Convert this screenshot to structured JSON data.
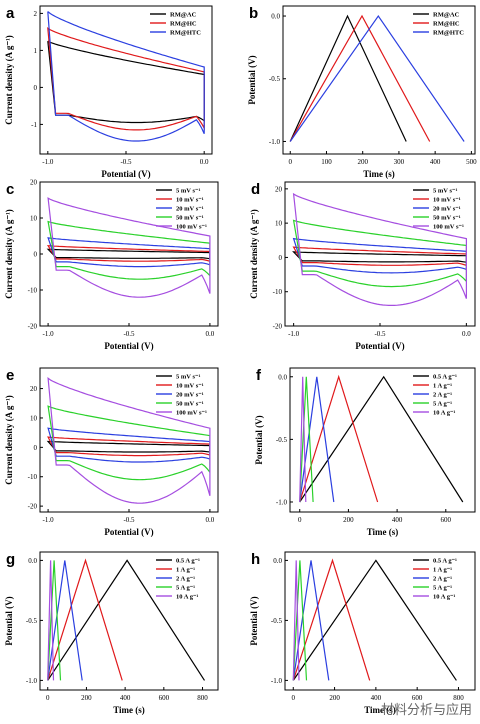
{
  "watermark": "材料分析与应用",
  "chart_data": [
    {
      "panel": "a",
      "type": "line",
      "xlabel": "Potential (V)",
      "ylabel": "Current density (A g⁻¹)",
      "xlim": [
        -1.05,
        0.05
      ],
      "ylim": [
        -1.8,
        2.2
      ],
      "xticks": [
        -1.0,
        -0.5,
        0.0
      ],
      "yticks": [
        -1,
        0,
        1,
        2
      ],
      "legend": "top-right",
      "series": [
        {
          "name": "RM@AC",
          "color": "#000000",
          "curve": "cv",
          "up": [
            1.25,
            0.35
          ],
          "dn": [
            -0.75,
            -0.95
          ],
          "tail": -0.9
        },
        {
          "name": "RM@HC",
          "color": "#e0191b",
          "curve": "cv",
          "up": [
            1.6,
            0.42
          ],
          "dn": [
            -0.7,
            -1.15
          ],
          "tail": -1.1
        },
        {
          "name": "RM@HTC",
          "color": "#2b3fe0",
          "curve": "cv",
          "up": [
            2.05,
            0.55
          ],
          "dn": [
            -0.75,
            -1.45
          ],
          "tail": -1.25
        }
      ]
    },
    {
      "panel": "b",
      "type": "line",
      "xlabel": "Time (s)",
      "ylabel": "Potential (V)",
      "xlim": [
        -20,
        510
      ],
      "ylim": [
        -1.1,
        0.08
      ],
      "xticks": [
        0,
        100,
        200,
        300,
        400,
        500
      ],
      "yticks": [
        -1.0,
        -0.5,
        0.0
      ],
      "legend": "top-right",
      "series": [
        {
          "name": "RM@AC",
          "color": "#000000",
          "curve": "gcd",
          "peak": 158,
          "end": 320
        },
        {
          "name": "RM@HC",
          "color": "#e0191b",
          "curve": "gcd",
          "peak": 198,
          "end": 385
        },
        {
          "name": "RM@HTC",
          "color": "#2b3fe0",
          "curve": "gcd",
          "peak": 243,
          "end": 480
        }
      ]
    },
    {
      "panel": "c",
      "type": "line",
      "xlabel": "Potential (V)",
      "ylabel": "Current density (A g⁻¹)",
      "xlim": [
        -1.05,
        0.05
      ],
      "ylim": [
        -20,
        20
      ],
      "xticks": [
        -1.0,
        -0.5,
        0.0
      ],
      "yticks": [
        -20,
        -10,
        0,
        10,
        20
      ],
      "legend": "top-right",
      "series": [
        {
          "name": "5 mV s⁻¹",
          "color": "#000000",
          "curve": "cv",
          "up": [
            1.3,
            0.4
          ],
          "dn": [
            -1.0,
            -1.2
          ],
          "tail": -1.3
        },
        {
          "name": "10 mV s⁻¹",
          "color": "#e0191b",
          "curve": "cv",
          "up": [
            2.3,
            0.7
          ],
          "dn": [
            -1.4,
            -2.0
          ],
          "tail": -2.0
        },
        {
          "name": "20 mV s⁻¹",
          "color": "#2b3fe0",
          "curve": "cv",
          "up": [
            4.5,
            1.5
          ],
          "dn": [
            -2.2,
            -3.5
          ],
          "tail": -3.0
        },
        {
          "name": "50 mV s⁻¹",
          "color": "#2ad12a",
          "curve": "cv",
          "up": [
            9.0,
            3.0
          ],
          "dn": [
            -3.5,
            -7.0
          ],
          "tail": -6.0
        },
        {
          "name": "100 mV s⁻¹",
          "color": "#a54ee0",
          "curve": "cv",
          "up": [
            15.5,
            5.0
          ],
          "dn": [
            -4.5,
            -12.0
          ],
          "tail": -11.0
        }
      ]
    },
    {
      "panel": "d",
      "type": "line",
      "xlabel": "Potential (V)",
      "ylabel": "Current density (A g⁻¹)",
      "xlim": [
        -1.05,
        0.05
      ],
      "ylim": [
        -20,
        22
      ],
      "xticks": [
        -1.0,
        -0.5,
        0.0
      ],
      "yticks": [
        -20,
        -10,
        0,
        10,
        20
      ],
      "legend": "top-right",
      "series": [
        {
          "name": "5 mV s⁻¹",
          "color": "#000000",
          "curve": "cv",
          "up": [
            1.6,
            0.5
          ],
          "dn": [
            -1.0,
            -1.3
          ],
          "tail": -1.4
        },
        {
          "name": "10 mV s⁻¹",
          "color": "#e0191b",
          "curve": "cv",
          "up": [
            3.0,
            1.0
          ],
          "dn": [
            -1.5,
            -2.3
          ],
          "tail": -2.3
        },
        {
          "name": "20 mV s⁻¹",
          "color": "#2b3fe0",
          "curve": "cv",
          "up": [
            5.5,
            1.8
          ],
          "dn": [
            -2.5,
            -4.5
          ],
          "tail": -3.5
        },
        {
          "name": "50 mV s⁻¹",
          "color": "#2ad12a",
          "curve": "cv",
          "up": [
            10.8,
            3.5
          ],
          "dn": [
            -4.0,
            -8.5
          ],
          "tail": -7.0
        },
        {
          "name": "100 mV s⁻¹",
          "color": "#a54ee0",
          "curve": "cv",
          "up": [
            18.5,
            5.5
          ],
          "dn": [
            -5.0,
            -14.0
          ],
          "tail": -12.0
        }
      ]
    },
    {
      "panel": "e",
      "type": "line",
      "xlabel": "Potential (V)",
      "ylabel": "Current density (A g⁻¹)",
      "xlim": [
        -1.05,
        0.05
      ],
      "ylim": [
        -22,
        27
      ],
      "xticks": [
        -1.0,
        -0.5,
        0.0
      ],
      "yticks": [
        -20,
        -10,
        0,
        10,
        20
      ],
      "legend": "top-right",
      "series": [
        {
          "name": "5 mV s⁻¹",
          "color": "#000000",
          "curve": "cv",
          "up": [
            2.0,
            0.6
          ],
          "dn": [
            -1.2,
            -1.6
          ],
          "tail": -1.6
        },
        {
          "name": "10 mV s⁻¹",
          "color": "#e0191b",
          "curve": "cv",
          "up": [
            3.5,
            1.1
          ],
          "dn": [
            -1.8,
            -2.8
          ],
          "tail": -2.6
        },
        {
          "name": "20 mV s⁻¹",
          "color": "#2b3fe0",
          "curve": "cv",
          "up": [
            6.5,
            2.0
          ],
          "dn": [
            -3.0,
            -5.0
          ],
          "tail": -4.0
        },
        {
          "name": "50 mV s⁻¹",
          "color": "#2ad12a",
          "curve": "cv",
          "up": [
            14.0,
            4.0
          ],
          "dn": [
            -4.5,
            -11.0
          ],
          "tail": -8.5
        },
        {
          "name": "100 mV s⁻¹",
          "color": "#a54ee0",
          "curve": "cv",
          "up": [
            23.5,
            6.5
          ],
          "dn": [
            -6.0,
            -19.0
          ],
          "tail": -16.5
        }
      ]
    },
    {
      "panel": "f",
      "type": "line",
      "xlabel": "Time (s)",
      "ylabel": "Potential (V)",
      "xlim": [
        -40,
        720
      ],
      "ylim": [
        -1.08,
        0.07
      ],
      "xticks": [
        0,
        200,
        400,
        600
      ],
      "yticks": [
        -1.0,
        -0.5,
        0.0
      ],
      "legend": "top-right",
      "series": [
        {
          "name": "0.5 A g⁻¹",
          "color": "#000000",
          "curve": "gcd",
          "peak": 345,
          "end": 670
        },
        {
          "name": "1 A g⁻¹",
          "color": "#e0191b",
          "curve": "gcd",
          "peak": 160,
          "end": 320
        },
        {
          "name": "2 A g⁻¹",
          "color": "#2b3fe0",
          "curve": "gcd",
          "peak": 70,
          "end": 140
        },
        {
          "name": "5 A g⁻¹",
          "color": "#2ad12a",
          "curve": "gcd",
          "peak": 27,
          "end": 55
        },
        {
          "name": "10 A g⁻¹",
          "color": "#a54ee0",
          "curve": "gcd",
          "peak": 12,
          "end": 25
        }
      ]
    },
    {
      "panel": "g",
      "type": "line",
      "xlabel": "Time (s)",
      "ylabel": "Potential (V)",
      "xlim": [
        -40,
        880
      ],
      "ylim": [
        -1.08,
        0.07
      ],
      "xticks": [
        0,
        200,
        400,
        600,
        800
      ],
      "yticks": [
        -1.0,
        -0.5,
        0.0
      ],
      "legend": "top-right",
      "series": [
        {
          "name": "0.5 A g⁻¹",
          "color": "#000000",
          "curve": "gcd",
          "peak": 410,
          "end": 810
        },
        {
          "name": "1 A g⁻¹",
          "color": "#e0191b",
          "curve": "gcd",
          "peak": 195,
          "end": 385
        },
        {
          "name": "2 A g⁻¹",
          "color": "#2b3fe0",
          "curve": "gcd",
          "peak": 88,
          "end": 178
        },
        {
          "name": "5 A g⁻¹",
          "color": "#2ad12a",
          "curve": "gcd",
          "peak": 33,
          "end": 66
        },
        {
          "name": "10 A g⁻¹",
          "color": "#a54ee0",
          "curve": "gcd",
          "peak": 15,
          "end": 30
        }
      ]
    },
    {
      "panel": "h",
      "type": "line",
      "xlabel": "Time (s)",
      "ylabel": "Potential (V)",
      "xlim": [
        -40,
        880
      ],
      "ylim": [
        -1.08,
        0.07
      ],
      "xticks": [
        0,
        200,
        400,
        600,
        800
      ],
      "yticks": [
        -1.0,
        -0.5,
        0.0
      ],
      "legend": "top-right",
      "series": [
        {
          "name": "0.5 A g⁻¹",
          "color": "#000000",
          "curve": "gcd",
          "peak": 400,
          "end": 790
        },
        {
          "name": "1 A g⁻¹",
          "color": "#e0191b",
          "curve": "gcd",
          "peak": 190,
          "end": 370
        },
        {
          "name": "2 A g⁻¹",
          "color": "#2b3fe0",
          "curve": "gcd",
          "peak": 86,
          "end": 172
        },
        {
          "name": "5 A g⁻¹",
          "color": "#2ad12a",
          "curve": "gcd",
          "peak": 32,
          "end": 64
        },
        {
          "name": "10 A g⁻¹",
          "color": "#a54ee0",
          "curve": "gcd",
          "peak": 14,
          "end": 28
        }
      ]
    }
  ]
}
